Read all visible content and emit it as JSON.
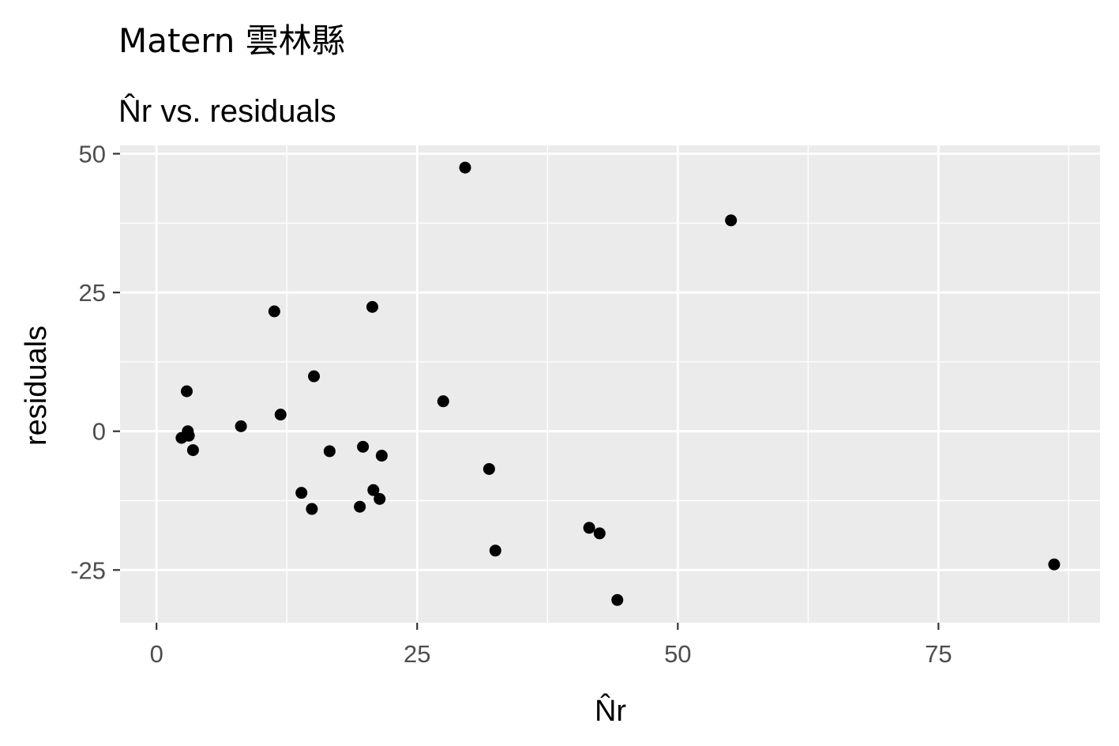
{
  "title": "Matern 雲林縣",
  "subtitle": "N̂r vs. residuals",
  "chart_data": {
    "type": "scatter",
    "title": "Matern 雲林縣",
    "subtitle": "N̂r vs. residuals",
    "xlabel": "N̂r",
    "ylabel": "residuals",
    "xlim": [
      -3.5,
      90.5
    ],
    "ylim": [
      -34.5,
      51.5
    ],
    "x_ticks": [
      0,
      25,
      50,
      75
    ],
    "y_ticks": [
      50,
      25,
      0,
      -25
    ],
    "x_tick_labels": [
      "0",
      "25",
      "50",
      "75"
    ],
    "y_tick_labels": [
      "50",
      "25",
      "0",
      "-25"
    ],
    "grid": true,
    "colors": {
      "panel_background": "#ebebeb",
      "grid_line": "#ffffff",
      "point": "#000000",
      "tick_mark": "#333333"
    },
    "points": [
      {
        "x": 2.4,
        "y": -1.2
      },
      {
        "x": 2.9,
        "y": 7.2
      },
      {
        "x": 3.0,
        "y": 0.0
      },
      {
        "x": 3.1,
        "y": -0.8
      },
      {
        "x": 3.5,
        "y": -3.4
      },
      {
        "x": 8.1,
        "y": 0.9
      },
      {
        "x": 11.3,
        "y": 21.6
      },
      {
        "x": 11.9,
        "y": 3.0
      },
      {
        "x": 13.9,
        "y": -11.1
      },
      {
        "x": 14.9,
        "y": -14.0
      },
      {
        "x": 15.1,
        "y": 9.9
      },
      {
        "x": 16.6,
        "y": -3.6
      },
      {
        "x": 19.5,
        "y": -13.6
      },
      {
        "x": 19.8,
        "y": -2.8
      },
      {
        "x": 20.7,
        "y": 22.4
      },
      {
        "x": 20.8,
        "y": -10.6
      },
      {
        "x": 21.4,
        "y": -12.2
      },
      {
        "x": 21.6,
        "y": -4.4
      },
      {
        "x": 27.5,
        "y": 5.4
      },
      {
        "x": 29.6,
        "y": 47.5
      },
      {
        "x": 31.9,
        "y": -6.8
      },
      {
        "x": 32.5,
        "y": -21.5
      },
      {
        "x": 41.5,
        "y": -17.4
      },
      {
        "x": 42.5,
        "y": -18.4
      },
      {
        "x": 44.2,
        "y": -30.4
      },
      {
        "x": 55.1,
        "y": 38.0
      },
      {
        "x": 86.1,
        "y": -24.0
      }
    ]
  }
}
